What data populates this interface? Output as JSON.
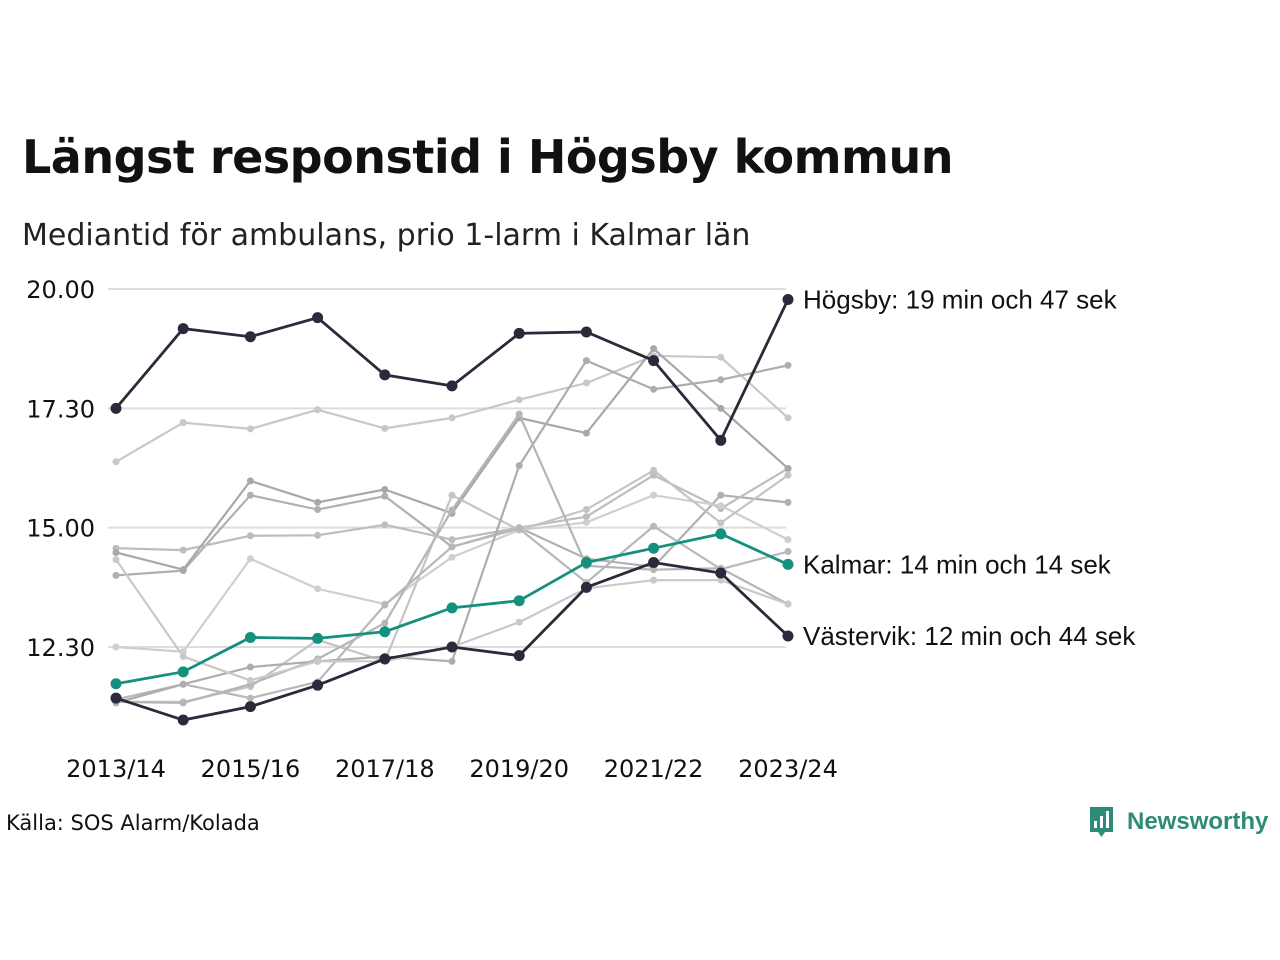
{
  "title": "Längst responstid i Högsby kommun",
  "subtitle": "Mediantid för ambulans, prio 1-larm i Kalmar län",
  "source": "Källa: SOS Alarm/Kolada",
  "brand": {
    "name": "Newsworthy",
    "color": "#2e8b77"
  },
  "chart_data": {
    "type": "line",
    "x": [
      "2013/14",
      "2014/15",
      "2015/16",
      "2016/17",
      "2017/18",
      "2018/19",
      "2019/20",
      "2020/21",
      "2021/22",
      "2022/23",
      "2023/24"
    ],
    "x_tick_labels": [
      "2013/14",
      "2015/16",
      "2017/18",
      "2019/20",
      "2021/22",
      "2023/24"
    ],
    "y_unit": "minutes",
    "ylim": [
      10.75,
      20.15
    ],
    "y_ticks": [
      12.5,
      15,
      17.5,
      20
    ],
    "y_tick_labels": [
      "12.30",
      "15.00",
      "17.30",
      "20.00"
    ],
    "grid": "horizontal",
    "highlighted": [
      {
        "name": "Högsby",
        "color": "#2a2a3a",
        "label": "Högsby: 19 min och 47 sek",
        "values": [
          17.5,
          19.17,
          19.0,
          19.4,
          18.2,
          17.97,
          19.07,
          19.1,
          18.5,
          16.83,
          19.78
        ]
      },
      {
        "name": "Kalmar",
        "color": "#16907e",
        "label": "Kalmar: 14 min och 14 sek",
        "values": [
          11.73,
          11.98,
          12.7,
          12.68,
          12.82,
          13.32,
          13.47,
          14.27,
          14.57,
          14.87,
          14.23
        ]
      },
      {
        "name": "Västervik",
        "color": "#2a2a3a",
        "label": "Västervik: 12 min och 44 sek",
        "values": [
          11.43,
          10.97,
          11.25,
          11.7,
          12.25,
          12.5,
          12.32,
          13.75,
          14.27,
          14.05,
          12.73
        ]
      }
    ],
    "other_series": [
      {
        "values": [
          16.38,
          17.2,
          17.07,
          17.47,
          17.08,
          17.3,
          17.68,
          18.03,
          18.6,
          18.57,
          17.3
        ]
      },
      {
        "values": [
          14.0,
          14.1,
          15.68,
          15.38,
          15.66,
          14.6,
          15.0,
          14.35,
          14.18,
          15.68,
          15.53
        ]
      },
      {
        "values": [
          14.57,
          14.53,
          14.83,
          14.84,
          15.06,
          14.75,
          15.0,
          15.23,
          16.1,
          15.4,
          16.24
        ]
      },
      {
        "values": [
          14.48,
          14.12,
          15.98,
          15.53,
          15.8,
          15.3,
          17.3,
          16.98,
          18.75,
          17.5,
          16.24
        ]
      },
      {
        "values": [
          12.5,
          12.4,
          14.35,
          13.72,
          13.4,
          14.38,
          14.95,
          15.11,
          15.68,
          15.46,
          14.75
        ]
      },
      {
        "values": [
          11.35,
          11.35,
          11.67,
          12.65,
          12.2,
          15.68,
          14.95,
          15.38,
          16.2,
          15.1,
          16.1
        ]
      },
      {
        "values": [
          11.4,
          11.72,
          11.43,
          11.77,
          13.38,
          14.6,
          14.98,
          13.85,
          15.03,
          14.13,
          14.5
        ]
      },
      {
        "values": [
          11.33,
          11.72,
          12.08,
          12.2,
          12.3,
          12.2,
          16.3,
          18.5,
          17.9,
          18.1,
          18.4
        ]
      },
      {
        "values": [
          11.35,
          11.33,
          11.72,
          12.25,
          13.0,
          15.37,
          17.38,
          14.2,
          14.12,
          14.15,
          13.4
        ]
      },
      {
        "values": [
          14.33,
          12.3,
          11.8,
          12.2,
          12.2,
          12.5,
          13.02,
          13.73,
          13.9,
          13.9,
          13.4
        ]
      }
    ]
  }
}
